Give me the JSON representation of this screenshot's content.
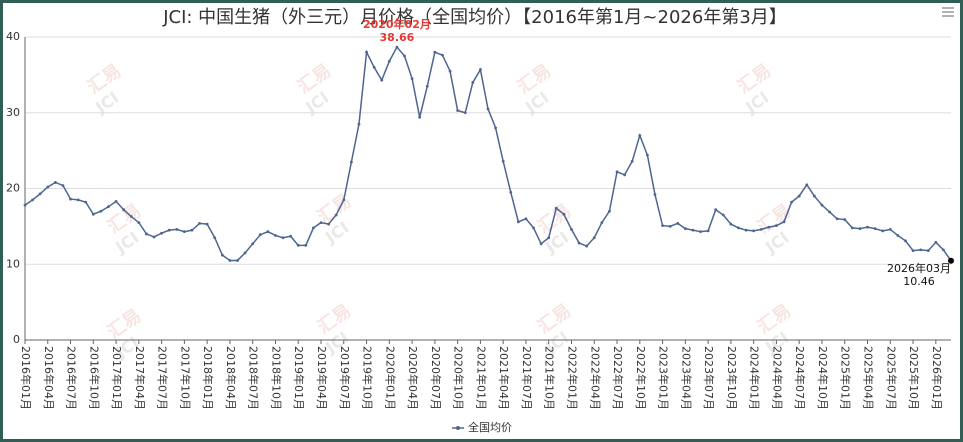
{
  "chart_data": {
    "type": "line",
    "title": "JCI: 中国生猪（外三元）月价格（全国均价）【2016年第1月~2026年第3月】",
    "categories": [
      "2016年01月",
      null,
      null,
      "2016年04月",
      null,
      null,
      "2016年07月",
      null,
      null,
      "2016年10月",
      null,
      null,
      "2017年01月",
      null,
      null,
      "2017年04月",
      null,
      null,
      "2017年07月",
      null,
      null,
      "2017年10月",
      null,
      null,
      "2018年01月",
      null,
      null,
      "2018年04月",
      null,
      null,
      "2018年07月",
      null,
      null,
      "2018年10月",
      null,
      null,
      "2019年01月",
      null,
      null,
      "2019年04月",
      null,
      null,
      "2019年07月",
      null,
      null,
      "2019年10月",
      null,
      null,
      "2020年01月",
      "2020年02月",
      null,
      "2020年04月",
      null,
      null,
      "2020年07月",
      null,
      null,
      "2020年10月",
      null,
      null,
      "2021年01月",
      null,
      null,
      "2021年04月",
      null,
      null,
      "2021年07月",
      null,
      null,
      "2021年10月",
      null,
      null,
      "2022年01月",
      null,
      null,
      "2022年04月",
      null,
      null,
      "2022年07月",
      null,
      null,
      "2022年10月",
      null,
      null,
      "2023年01月",
      null,
      null,
      "2023年04月",
      null,
      null,
      "2023年07月",
      null,
      null,
      "2023年10月",
      null,
      null,
      "2024年01月",
      null,
      null,
      "2024年04月",
      null,
      null,
      "2024年07月",
      null,
      null,
      "2024年10月",
      null,
      null,
      "2025年01月",
      null,
      null,
      "2025年04月",
      null,
      null,
      "2025年07月",
      null,
      null,
      "2025年10月",
      null,
      null,
      "2026年01月",
      null,
      "2026年03月"
    ],
    "series": [
      {
        "name": "全国均价",
        "color": "#4d6690",
        "values": [
          17.8,
          18.5,
          19.3,
          20.2,
          20.8,
          20.4,
          18.6,
          18.5,
          18.2,
          16.6,
          17.0,
          17.6,
          18.3,
          17.2,
          16.3,
          15.5,
          14.0,
          13.6,
          14.1,
          14.5,
          14.6,
          14.3,
          14.5,
          15.4,
          15.3,
          13.5,
          11.2,
          10.5,
          10.5,
          11.5,
          12.7,
          13.9,
          14.3,
          13.8,
          13.5,
          13.7,
          12.5,
          12.5,
          14.8,
          15.5,
          15.3,
          16.5,
          18.5,
          23.5,
          28.5,
          38.0,
          36.0,
          34.3,
          36.8,
          38.66,
          37.5,
          34.5,
          29.4,
          33.5,
          38.0,
          37.6,
          35.5,
          30.3,
          30.0,
          34.0,
          35.7,
          30.5,
          28.0,
          23.6,
          19.5,
          15.6,
          16.0,
          14.8,
          12.7,
          13.5,
          17.4,
          16.6,
          14.6,
          12.8,
          12.4,
          13.5,
          15.5,
          17.0,
          22.2,
          21.8,
          23.6,
          27.0,
          24.4,
          19.2,
          15.1,
          15.0,
          15.4,
          14.7,
          14.5,
          14.3,
          14.4,
          17.2,
          16.5,
          15.3,
          14.8,
          14.5,
          14.4,
          14.6,
          14.9,
          15.1,
          15.6,
          18.2,
          19.0,
          20.5,
          19.0,
          17.8,
          16.9,
          16.0,
          15.9,
          14.8,
          14.7,
          14.9,
          14.7,
          14.4,
          14.6,
          13.8,
          13.1,
          11.8,
          11.9,
          11.8,
          12.9,
          11.9,
          10.46
        ],
        "value_labels": [
          null,
          null,
          null,
          null,
          null,
          null,
          null,
          null,
          null,
          null,
          null,
          null,
          null,
          null,
          null,
          null,
          null,
          null,
          null,
          null,
          null,
          null,
          null,
          null,
          null,
          null,
          null,
          null,
          null,
          null,
          null,
          null,
          null,
          null,
          null,
          null,
          null,
          null,
          null,
          null,
          null,
          null,
          null,
          null,
          null,
          null,
          null,
          null,
          null,
          "38.66",
          null,
          null,
          null,
          null,
          null,
          null,
          null,
          null,
          null,
          null,
          null,
          null,
          null,
          null,
          null,
          null,
          null,
          null,
          null,
          null,
          null,
          null,
          null,
          null,
          null,
          null,
          null,
          null,
          null,
          null,
          null,
          null,
          null,
          null,
          null,
          null,
          null,
          null,
          null,
          null,
          null,
          null,
          null,
          null,
          null,
          null,
          null,
          null,
          null,
          null,
          null,
          null,
          null,
          null,
          null,
          null,
          null,
          null,
          null,
          null,
          null,
          null,
          null,
          null,
          null,
          null,
          null,
          null,
          null,
          null,
          null,
          null,
          "10.46"
        ]
      }
    ],
    "max_label_color": "#e53935",
    "label_color": "#111111",
    "ylim": [
      0,
      40
    ],
    "yticks": [
      0,
      10,
      20,
      30,
      40
    ],
    "grid": true,
    "legend": "bottom",
    "watermark": [
      "汇易",
      "JCI"
    ]
  }
}
